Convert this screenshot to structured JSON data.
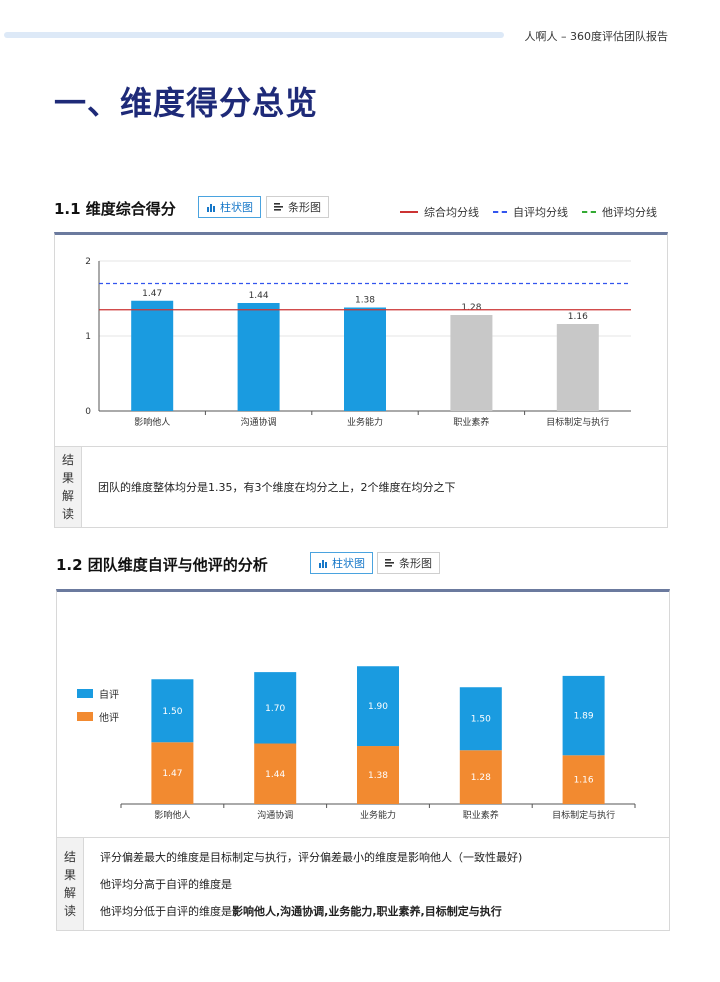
{
  "header": {
    "title": "人啊人 – 360度评估团队报告"
  },
  "page_title": "一、维度得分总览",
  "section1": {
    "title": "1.1 维度综合得分",
    "tabs": [
      {
        "label": "柱状图",
        "active": true,
        "icon": "bar-chart-icon"
      },
      {
        "label": "条形图",
        "active": false,
        "icon": "list-icon"
      }
    ],
    "legend": [
      {
        "label": "综合均分线",
        "color": "#cc3333",
        "style": "solid"
      },
      {
        "label": "自评均分线",
        "color": "#3355ee",
        "style": "dashed"
      },
      {
        "label": "他评均分线",
        "color": "#33aa33",
        "style": "dashed"
      }
    ],
    "result_label": [
      "结",
      "果",
      "解",
      "读"
    ],
    "result_lines": [
      "团队的维度整体均分是1.35，有3个维度在均分之上，2个维度在均分之下"
    ]
  },
  "section2": {
    "title": "1.2 团队维度自评与他评的分析",
    "tabs": [
      {
        "label": "柱状图",
        "active": true,
        "icon": "bar-chart-icon"
      },
      {
        "label": "条形图",
        "active": false,
        "icon": "list-icon"
      }
    ],
    "legend": [
      {
        "label": "自评",
        "color": "#1a9be0"
      },
      {
        "label": "他评",
        "color": "#f28a30"
      }
    ],
    "result_label": [
      "结",
      "果",
      "解",
      "读"
    ],
    "result_lines": [
      "评分偏差最大的维度是目标制定与执行，评分偏差最小的维度是影响他人（一致性最好)",
      "他评均分高于自评的维度是"
    ],
    "result_line3_prefix": "他评均分低于自评的维度是",
    "result_line3_bold": "影响他人,沟通协调,业务能力,职业素养,目标制定与执行"
  },
  "chart_data": [
    {
      "type": "bar",
      "categories": [
        "影响他人",
        "沟通协调",
        "业务能力",
        "职业素养",
        "目标制定与执行"
      ],
      "values": [
        1.47,
        1.44,
        1.38,
        1.28,
        1.16
      ],
      "data_labels": [
        "1.47",
        "1.44",
        "1.38",
        "1.28",
        "1.16"
      ],
      "bar_colors": [
        "#1a9be0",
        "#1a9be0",
        "#1a9be0",
        "#c8c8c8",
        "#c8c8c8"
      ],
      "ylim": [
        0,
        2
      ],
      "yticks": [
        0,
        1,
        2
      ],
      "reference_lines": [
        {
          "name": "综合均分线",
          "value": 1.35,
          "color": "#cc3333",
          "style": "solid"
        },
        {
          "name": "自评均分线",
          "value": 1.7,
          "color": "#3355ee",
          "style": "dashed"
        }
      ],
      "grid": true
    },
    {
      "type": "bar",
      "stacked": true,
      "categories": [
        "影响他人",
        "沟通协调",
        "业务能力",
        "职业素养",
        "目标制定与执行"
      ],
      "series": [
        {
          "name": "他评",
          "values": [
            1.47,
            1.44,
            1.38,
            1.28,
            1.16
          ],
          "labels": [
            "1.47",
            "1.44",
            "1.38",
            "1.28",
            "1.16"
          ],
          "color": "#f28a30"
        },
        {
          "name": "自评",
          "values": [
            1.5,
            1.7,
            1.9,
            1.5,
            1.89
          ],
          "labels": [
            "1.50",
            "1.70",
            "1.90",
            "1.50",
            "1.89"
          ],
          "color": "#1a9be0"
        }
      ],
      "legend_position": "left",
      "grid": false
    }
  ]
}
